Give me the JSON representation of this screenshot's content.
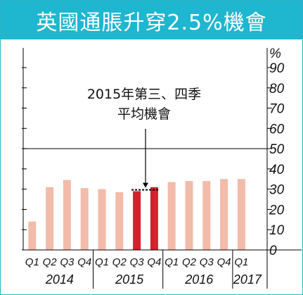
{
  "title": "英國通脹升穿2.5%機會",
  "chart_data": {
    "type": "bar",
    "title": "英國通脹升穿2.5%機會",
    "y_unit": "%",
    "ylim": [
      0,
      90
    ],
    "yticks": [
      0,
      10,
      20,
      30,
      40,
      50,
      60,
      70,
      80,
      90
    ],
    "categories": [
      "Q1",
      "Q2",
      "Q3",
      "Q4",
      "Q1",
      "Q2",
      "Q3",
      "Q4",
      "Q1",
      "Q2",
      "Q3",
      "Q4",
      "Q1"
    ],
    "year_groups": [
      {
        "label": "2014",
        "start": 0,
        "count": 4
      },
      {
        "label": "2015",
        "start": 4,
        "count": 4
      },
      {
        "label": "2016",
        "start": 8,
        "count": 4
      },
      {
        "label": "2017",
        "start": 12,
        "count": 1
      }
    ],
    "values": [
      14,
      31,
      34.5,
      30.5,
      30,
      28.5,
      29,
      31,
      33.5,
      34,
      34,
      35,
      35
    ],
    "highlight_indices": [
      6,
      7
    ],
    "reference_line": 50,
    "annotation": {
      "line1": "2015年第三、四季",
      "line2": "平均機會",
      "value": 30,
      "indices": [
        6,
        7
      ]
    },
    "colors": {
      "bar": "#f3bba9",
      "highlight": "#d7202c",
      "title_bg": "#1fb6cf",
      "frame": "#2bb3c9",
      "reference_line": "#000000"
    }
  }
}
